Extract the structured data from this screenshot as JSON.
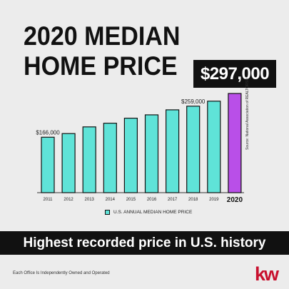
{
  "header": {
    "title_line1": "2020 MEDIAN",
    "title_line2": "HOME PRICE"
  },
  "highlight": {
    "value": "$297,000"
  },
  "chart_data": {
    "type": "bar",
    "categories": [
      "2011",
      "2012",
      "2013",
      "2014",
      "2015",
      "2016",
      "2017",
      "2018",
      "2019",
      "2020"
    ],
    "values": [
      166000,
      177000,
      197000,
      208000,
      223000,
      233000,
      248000,
      259000,
      274000,
      297000
    ],
    "data_labels": {
      "0": "$166,000",
      "7": "$259,000"
    },
    "highlight_index": 9,
    "ylim": [
      0,
      297000
    ],
    "colors": {
      "bar": "#5fe3d8",
      "highlight": "#b94fe8",
      "outline": "#111111"
    },
    "grid": false,
    "legend_position": "bottom-center"
  },
  "legend": {
    "label": "U.S. ANNUAL MEDIAN HOME PRICE"
  },
  "source": {
    "text": "Source: National Association of REALTORS®"
  },
  "banner": {
    "text": "Highest recorded price in U.S. history"
  },
  "footer": {
    "text": "Each Office Is Independently Owned and Operated",
    "logo": "kw"
  }
}
